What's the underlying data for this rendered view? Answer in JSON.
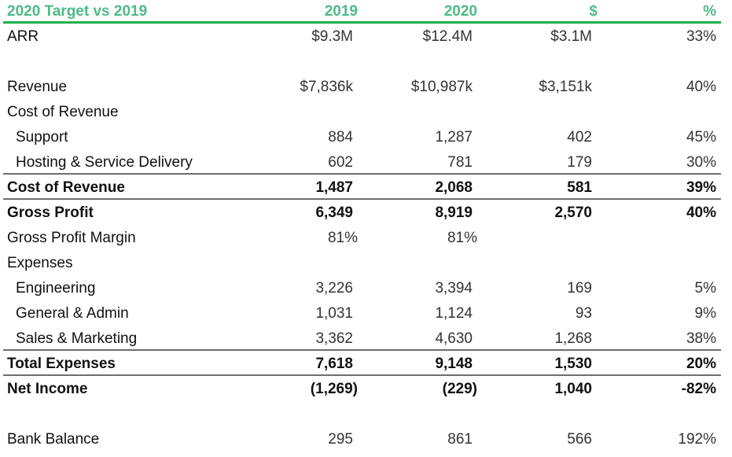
{
  "header": {
    "title": "2020 Target vs 2019",
    "col_2019": "2019",
    "col_2020": "2020",
    "col_dollar": "$",
    "col_pct": "%"
  },
  "colors": {
    "header_text": "#4dbb87",
    "header_rule": "#1eb14f",
    "rule": "#6e6e6e"
  },
  "rows": [
    {
      "label": "ARR",
      "v2019": "$9.3M",
      "v2020": "$12.4M",
      "dollar": "$3.1M",
      "pct": "33%"
    },
    {
      "label": "Revenue",
      "v2019": "$7,836k",
      "v2020": "$10,987k",
      "dollar": "$3,151k",
      "pct": "40%"
    },
    {
      "label": "Cost of Revenue"
    },
    {
      "label": "Support",
      "v2019": "884",
      "v2020": "1,287",
      "dollar": "402",
      "pct": "45%"
    },
    {
      "label": "Hosting & Service Delivery",
      "v2019": "602",
      "v2020": "781",
      "dollar": "179",
      "pct": "30%"
    },
    {
      "label": "Cost of Revenue",
      "v2019": "1,487",
      "v2020": "2,068",
      "dollar": "581",
      "pct": "39%"
    },
    {
      "label": "Gross Profit",
      "v2019": "6,349",
      "v2020": "8,919",
      "dollar": "2,570",
      "pct": "40%"
    },
    {
      "label": "Gross Profit Margin",
      "v2019": "81%",
      "v2020": "81%"
    },
    {
      "label": "Expenses"
    },
    {
      "label": "Engineering",
      "v2019": "3,226",
      "v2020": "3,394",
      "dollar": "169",
      "pct": "5%"
    },
    {
      "label": "General & Admin",
      "v2019": "1,031",
      "v2020": "1,124",
      "dollar": "93",
      "pct": "9%"
    },
    {
      "label": "Sales & Marketing",
      "v2019": "3,362",
      "v2020": "4,630",
      "dollar": "1,268",
      "pct": "38%"
    },
    {
      "label": "Total Expenses",
      "v2019": "7,618",
      "v2020": "9,148",
      "dollar": "1,530",
      "pct": "20%"
    },
    {
      "label": "Net Income",
      "v2019": "(1,269)",
      "v2020": "(229)",
      "dollar": "1,040",
      "pct": "-82%"
    },
    {
      "label": "Bank Balance",
      "v2019": "295",
      "v2020": "861",
      "dollar": "566",
      "pct": "192%"
    }
  ]
}
